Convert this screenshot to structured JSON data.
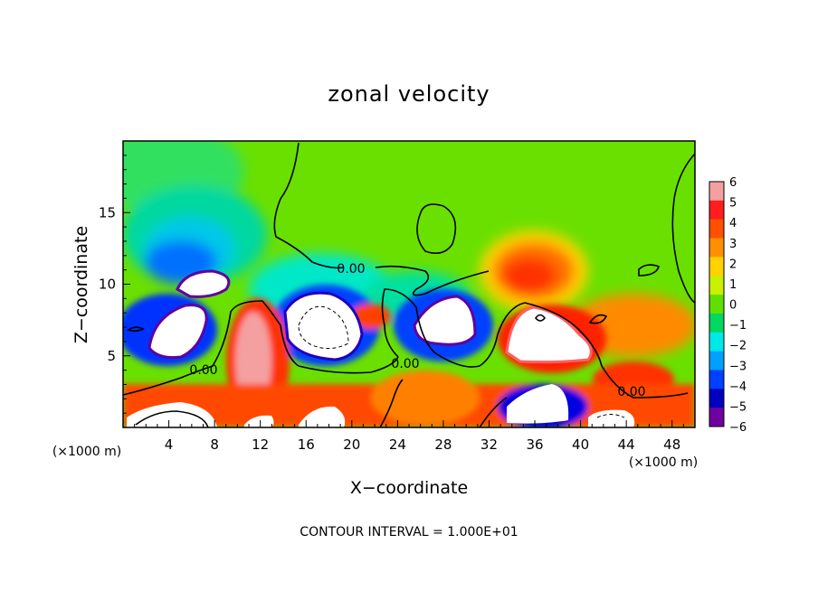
{
  "chart_data": {
    "type": "heatmap",
    "title": "zonal velocity",
    "xlabel": "X−coordinate",
    "ylabel": "Z−coordinate",
    "x_unit_left": "(×1000 m)",
    "x_unit_right": "(×1000 m)",
    "xlim": [
      0,
      50
    ],
    "ylim": [
      0,
      20
    ],
    "xticks": [
      "4",
      "8",
      "12",
      "16",
      "20",
      "24",
      "28",
      "32",
      "36",
      "40",
      "44",
      "48"
    ],
    "yticks": [
      "5",
      "10",
      "15"
    ],
    "colorbar": {
      "ticks": [
        "6",
        "5",
        "4",
        "3",
        "2",
        "1",
        "0",
        "−1",
        "−2",
        "−3",
        "−4",
        "−5",
        "−6"
      ],
      "range": [
        -6,
        6
      ],
      "colors": [
        "#f4a0a0",
        "#ff1e1e",
        "#ff5000",
        "#ff9000",
        "#ffd200",
        "#c8f000",
        "#60e000",
        "#00d860",
        "#00e8e8",
        "#00a0ff",
        "#0040ff",
        "#0000c0",
        "#7000a0"
      ]
    },
    "contour_labels": [
      "0.00",
      "0.00",
      "0.00",
      "0.00"
    ],
    "footer": "CONTOUR INTERVAL = 1.000E+01"
  }
}
